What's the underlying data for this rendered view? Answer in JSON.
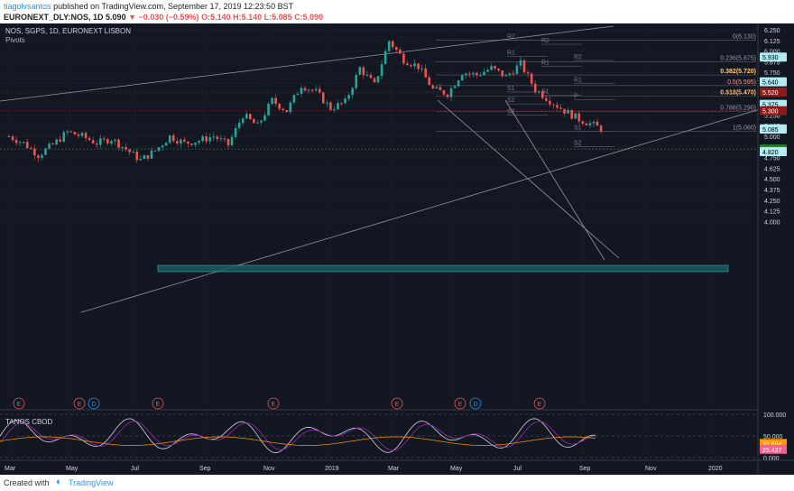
{
  "header": {
    "author": "tiagolvsantos",
    "published": "published on TradingView.com, September 17, 2019 12:23:50 BST",
    "symbol": "EURONEXT_DLY:NOS, 1D",
    "last": "5.090",
    "change": "▼ −0.030 (−0.59%)",
    "ohlc": "O:5.140 H:5.140 L:5.085 C:5.090"
  },
  "pane": {
    "title": "NOS, SGPS, 1D, EURONEXT LISBON",
    "indicator": "Pivots"
  },
  "osc": {
    "title": "TANOS CBOD"
  },
  "footer": {
    "created": "Created with",
    "brand": "TradingView"
  },
  "colors": {
    "bg": "#131722",
    "up": "#26a69a",
    "down": "#ef5350",
    "grid": "#2a2e39",
    "text": "#d1d4dc"
  },
  "chart_data": {
    "type": "candlestick",
    "ylim": [
      3.9,
      6.3
    ],
    "yticks": [
      "6.250",
      "6.125",
      "6.000",
      "5.875",
      "5.750",
      "5.625",
      "5.500",
      "5.375",
      "5.250",
      "5.125",
      "5.000",
      "4.875",
      "4.750",
      "4.625",
      "4.500",
      "4.375",
      "4.250",
      "4.125",
      "4.000"
    ],
    "x_labels": [
      "Mar",
      "May",
      "Jul",
      "Sep",
      "Nov",
      "2019",
      "Mar",
      "May",
      "Jul",
      "Sep",
      "Nov",
      "2020"
    ],
    "price_path": [
      [
        0,
        5.0
      ],
      [
        4,
        4.92
      ],
      [
        8,
        4.78
      ],
      [
        12,
        4.9
      ],
      [
        16,
        5.05
      ],
      [
        20,
        5.0
      ],
      [
        24,
        4.92
      ],
      [
        28,
        4.97
      ],
      [
        32,
        4.85
      ],
      [
        36,
        4.72
      ],
      [
        40,
        4.83
      ],
      [
        44,
        5.0
      ],
      [
        48,
        4.92
      ],
      [
        52,
        4.95
      ],
      [
        56,
        5.0
      ],
      [
        60,
        4.9
      ],
      [
        64,
        5.25
      ],
      [
        68,
        5.12
      ],
      [
        72,
        5.42
      ],
      [
        76,
        5.3
      ],
      [
        80,
        5.6
      ],
      [
        84,
        5.52
      ],
      [
        88,
        5.33
      ],
      [
        92,
        5.4
      ],
      [
        96,
        5.8
      ],
      [
        100,
        5.6
      ],
      [
        104,
        6.12
      ],
      [
        108,
        5.9
      ],
      [
        112,
        5.82
      ],
      [
        116,
        5.55
      ],
      [
        120,
        5.5
      ],
      [
        124,
        5.75
      ],
      [
        128,
        5.72
      ],
      [
        132,
        5.8
      ],
      [
        136,
        5.7
      ],
      [
        140,
        5.85
      ],
      [
        144,
        5.55
      ],
      [
        148,
        5.42
      ],
      [
        152,
        5.3
      ],
      [
        156,
        5.2
      ],
      [
        160,
        5.13
      ],
      [
        162,
        5.09
      ]
    ],
    "fib_levels": [
      {
        "label": "0(6.130)",
        "value": 6.13
      },
      {
        "label": "0.236(5.875)",
        "value": 5.875
      },
      {
        "label": "0.382(5.720)",
        "value": 5.72
      },
      {
        "label": "0.5(5.595)",
        "value": 5.595
      },
      {
        "label": "0.618(5.470)",
        "value": 5.47
      },
      {
        "label": "0.786(5.290)",
        "value": 5.29
      },
      {
        "label": "1(5.060)",
        "value": 5.06
      }
    ],
    "price_badges": [
      {
        "label": "5.930",
        "value": 5.93,
        "bg": "#b2ebf2",
        "fg": "#000"
      },
      {
        "label": "5.640",
        "value": 5.64,
        "bg": "#b2ebf2",
        "fg": "#000"
      },
      {
        "label": "5.520",
        "value": 5.52,
        "bg": "#8b1a1a",
        "fg": "#fff"
      },
      {
        "label": "5.375",
        "value": 5.375,
        "bg": "#b2ebf2",
        "fg": "#000"
      },
      {
        "label": "5.300",
        "value": 5.3,
        "bg": "#8b1a1a",
        "fg": "#fff"
      },
      {
        "label": "5.090",
        "value": 5.09,
        "bg": "#ef5350",
        "fg": "#fff"
      },
      {
        "label": "5.085",
        "value": 5.085,
        "bg": "#b2ebf2",
        "fg": "#000"
      },
      {
        "label": "4.850",
        "value": 4.85,
        "bg": "#2e7d32",
        "fg": "#fff"
      },
      {
        "label": "4.820",
        "value": 4.82,
        "bg": "#b2ebf2",
        "fg": "#000"
      }
    ],
    "pivot_labels": [
      {
        "label": "R2",
        "value": 6.13
      },
      {
        "label": "R2",
        "value": 6.08
      },
      {
        "label": "R1",
        "value": 5.94
      },
      {
        "label": "R2",
        "value": 5.89
      },
      {
        "label": "R1",
        "value": 5.82
      },
      {
        "label": "R1",
        "value": 5.62
      },
      {
        "label": "S1",
        "value": 5.52
      },
      {
        "label": "S1",
        "value": 5.48
      },
      {
        "label": "P",
        "value": 5.43
      },
      {
        "label": "S2",
        "value": 5.38
      },
      {
        "label": "S2",
        "value": 5.25
      },
      {
        "label": "S1",
        "value": 5.06
      },
      {
        "label": "S2",
        "value": 4.88
      }
    ],
    "oscillator": {
      "yticks": [
        "100.000",
        "50.000",
        "0.000"
      ],
      "ylim": [
        0,
        100
      ],
      "current": [
        {
          "label": "32.694",
          "value": 32.694,
          "bg": "#ff9800",
          "fg": "#fff"
        },
        {
          "label": "25.437",
          "value": 25.437,
          "bg": "#f06292",
          "fg": "#fff"
        }
      ]
    },
    "event_markers": [
      "E",
      "E",
      "D",
      "E",
      "E",
      "E",
      "E",
      "D",
      "E"
    ]
  }
}
